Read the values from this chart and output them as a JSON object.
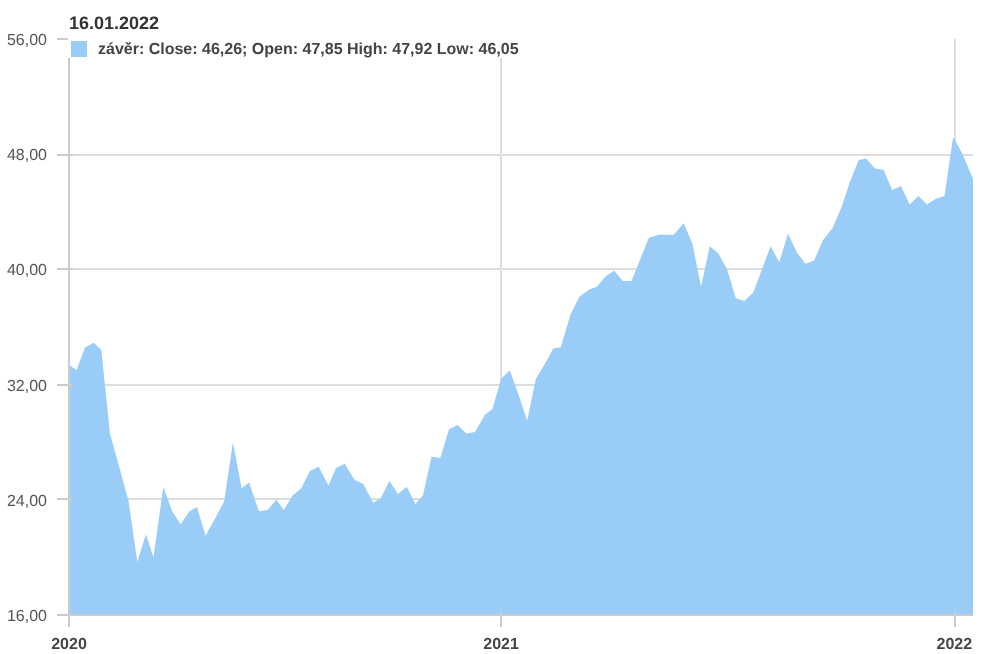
{
  "chart_data": {
    "type": "area",
    "title": "16.01.2022",
    "x": [
      "2020-01-19",
      "2020-01-25",
      "2020-02-01",
      "2020-02-08",
      "2020-02-14",
      "2020-02-21",
      "2020-02-29",
      "2020-03-07",
      "2020-03-14",
      "2020-03-21",
      "2020-03-27",
      "2020-04-04",
      "2020-04-11",
      "2020-04-18",
      "2020-04-25",
      "2020-05-01",
      "2020-05-08",
      "2020-05-15",
      "2020-05-23",
      "2020-05-30",
      "2020-06-06",
      "2020-06-12",
      "2020-06-20",
      "2020-06-27",
      "2020-07-04",
      "2020-07-10",
      "2020-07-17",
      "2020-07-24",
      "2020-07-31",
      "2020-08-07",
      "2020-08-15",
      "2020-08-21",
      "2020-08-28",
      "2020-09-05",
      "2020-09-12",
      "2020-09-20",
      "2020-09-26",
      "2020-10-03",
      "2020-10-10",
      "2020-10-17",
      "2020-10-24",
      "2020-10-30",
      "2020-11-06",
      "2020-11-13",
      "2020-11-20",
      "2020-11-27",
      "2020-12-04",
      "2020-12-11",
      "2020-12-19",
      "2020-12-25",
      "2021-01-01",
      "2021-01-08",
      "2021-01-15",
      "2021-01-22",
      "2021-01-29",
      "2021-02-05",
      "2021-02-12",
      "2021-02-18",
      "2021-02-26",
      "2021-03-05",
      "2021-03-13",
      "2021-03-19",
      "2021-03-26",
      "2021-04-02",
      "2021-04-09",
      "2021-04-16",
      "2021-04-23",
      "2021-04-30",
      "2021-05-08",
      "2021-05-14",
      "2021-05-20",
      "2021-05-28",
      "2021-06-04",
      "2021-06-11",
      "2021-06-18",
      "2021-06-25",
      "2021-07-02",
      "2021-07-09",
      "2021-07-16",
      "2021-07-23",
      "2021-07-30",
      "2021-08-06",
      "2021-08-13",
      "2021-08-20",
      "2021-08-27",
      "2021-09-03",
      "2021-09-10",
      "2021-09-17",
      "2021-09-25",
      "2021-10-02",
      "2021-10-09",
      "2021-10-16",
      "2021-10-22",
      "2021-10-29",
      "2021-11-05",
      "2021-11-12",
      "2021-11-19",
      "2021-11-26",
      "2021-12-03",
      "2021-12-10",
      "2021-12-17",
      "2021-12-24",
      "2021-12-31",
      "2022-01-07",
      "2022-01-16"
    ],
    "series": [
      {
        "name": "závěr: Close: 46,26; Open: 47,85 High: 47,92 Low: 46,05",
        "color": "#99ccf7",
        "values": [
          33.4,
          33.0,
          34.6,
          34.9,
          34.4,
          28.6,
          26.1,
          23.9,
          19.7,
          21.6,
          20.0,
          24.9,
          23.2,
          22.3,
          23.2,
          23.5,
          21.5,
          22.6,
          23.9,
          28.0,
          24.8,
          25.2,
          23.2,
          23.3,
          24.0,
          23.3,
          24.3,
          24.8,
          26.0,
          26.3,
          25.0,
          26.2,
          26.5,
          25.4,
          25.1,
          23.8,
          24.1,
          25.3,
          24.4,
          24.9,
          23.7,
          24.3,
          27.0,
          26.9,
          28.9,
          29.2,
          28.6,
          28.7,
          29.9,
          30.3,
          32.4,
          33.0,
          31.3,
          29.5,
          32.4,
          33.4,
          34.5,
          34.6,
          36.9,
          38.1,
          38.6,
          38.8,
          39.5,
          39.9,
          39.2,
          39.2,
          40.7,
          42.2,
          42.4,
          42.4,
          42.4,
          43.2,
          41.8,
          38.8,
          41.6,
          41.1,
          40.0,
          38.0,
          37.8,
          38.4,
          40.0,
          41.6,
          40.5,
          42.5,
          41.2,
          40.4,
          40.6,
          42.0,
          42.9,
          44.3,
          46.1,
          47.6,
          47.7,
          47.0,
          46.9,
          45.5,
          45.8,
          44.5,
          45.1,
          44.5,
          44.9,
          45.1,
          49.2,
          48.1,
          46.3
        ]
      }
    ],
    "xlim": [
      "2020-01-19",
      "2022-01-16"
    ],
    "xticks": [
      {
        "value": "2020-01-19",
        "label": "2020"
      },
      {
        "value": "2021-01-01",
        "label": "2021"
      },
      {
        "value": "2022-01-01",
        "label": "2022"
      }
    ],
    "ylim": [
      16,
      56
    ],
    "yticks": [
      {
        "value": 16,
        "label": "16,00"
      },
      {
        "value": 24,
        "label": "24,00"
      },
      {
        "value": 32,
        "label": "32,00"
      },
      {
        "value": 40,
        "label": "40,00"
      },
      {
        "value": 48,
        "label": "48,00"
      },
      {
        "value": 56,
        "label": "56,00"
      }
    ],
    "grid": true,
    "legend": "top left"
  }
}
